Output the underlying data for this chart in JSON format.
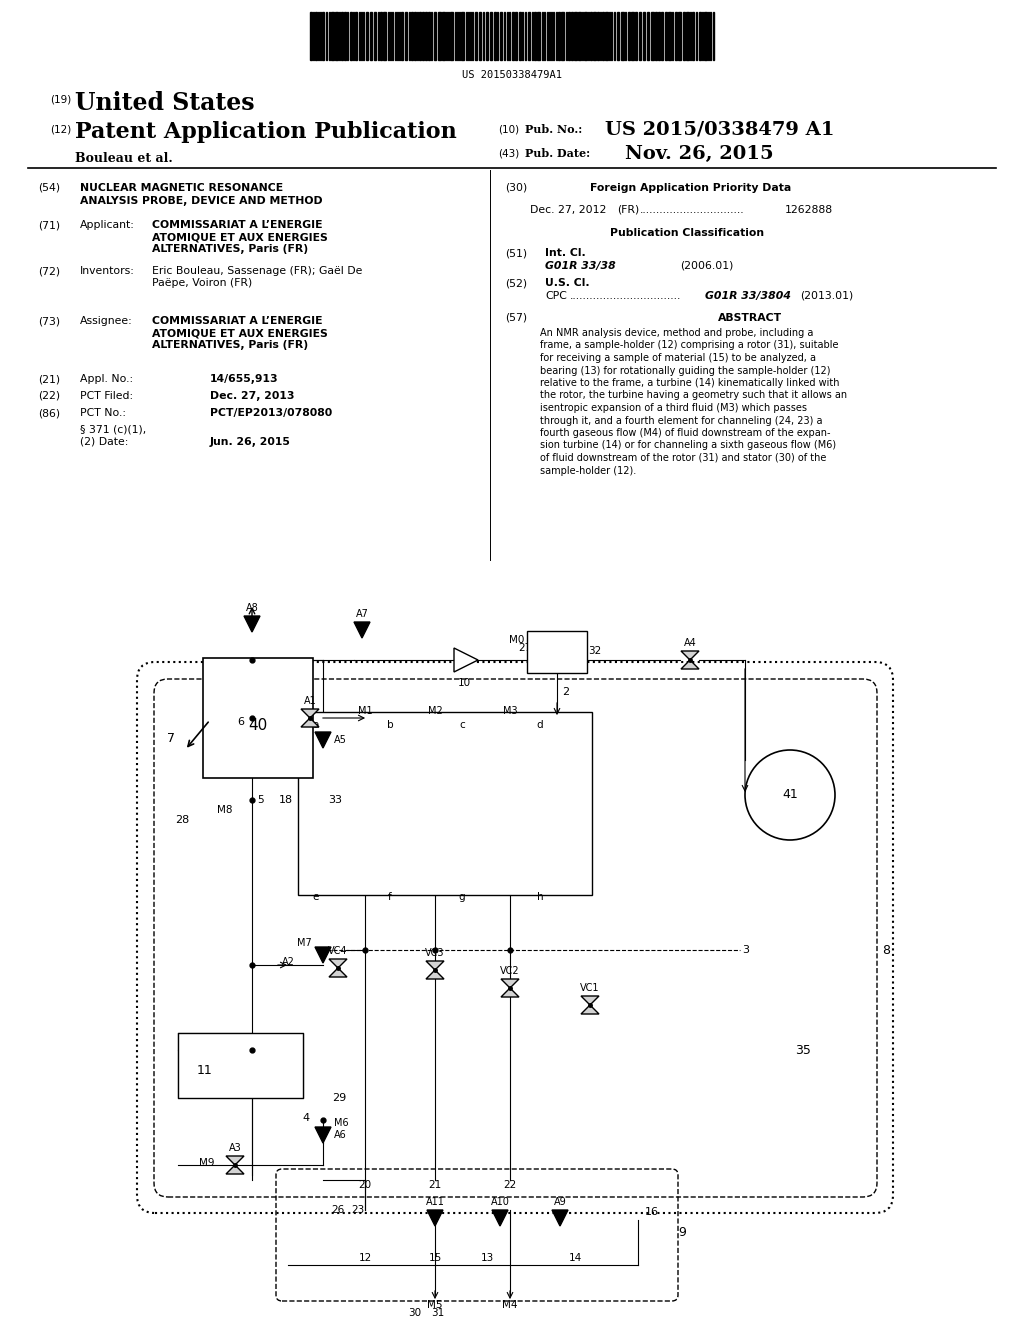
{
  "bg_color": "#ffffff",
  "barcode_text": "US 20150338479A1",
  "country": "United States",
  "inventor_line": "Bouleau et al.",
  "pub_no": "US 2015/0338479 A1",
  "pub_date": "Nov. 26, 2015",
  "title_line1": "NUCLEAR MAGNETIC RESONANCE",
  "title_line2": "ANALYSIS PROBE, DEVICE AND METHOD",
  "applicant_val1": "COMMISSARIAT A L’ENERGIE",
  "applicant_val2": "ATOMIQUE ET AUX ENERGIES",
  "applicant_val3": "ALTERNATIVES, Paris (FR)",
  "inventors_val1": "Eric Bouleau, Sassenage (FR); Gaël De",
  "inventors_val2": "Paëpe, Voiron (FR)",
  "assignee_val1": "COMMISSARIAT A L’ENERGIE",
  "assignee_val2": "ATOMIQUE ET AUX ENERGIES",
  "assignee_val3": "ALTERNATIVES, Paris (FR)",
  "appl_no_val": "14/655,913",
  "pct_filed_val": "Dec. 27, 2013",
  "pct_no_val": "PCT/EP2013/078080",
  "sec371_line1": "§ 371 (c)(1),",
  "sec371_line2": "(2) Date:",
  "sec371_date": "Jun. 26, 2015",
  "foreign_header": "Foreign Application Priority Data",
  "foreign_date": "Dec. 27, 2012",
  "foreign_country": "(FR)",
  "foreign_dots": "...............................",
  "foreign_no": "1262888",
  "pub_class_header": "Publication Classification",
  "intcl_val": "G01R 33/38",
  "intcl_year": "(2006.01)",
  "cpc_dots": ".................................",
  "cpc_val": "G01R 33/3804",
  "cpc_year": "(2013.01)",
  "abstract_header": "ABSTRACT",
  "abstract_lines": [
    "An NMR analysis device, method and probe, including a",
    "frame, a sample-holder (12) comprising a rotor (31), suitable",
    "for receiving a sample of material (15) to be analyzed, a",
    "bearing (13) for rotationally guiding the sample-holder (12)",
    "relative to the frame, a turbine (14) kinematically linked with",
    "the rotor, the turbine having a geometry such that it allows an",
    "isentropic expansion of a third fluid (M3) which passes",
    "through it, and a fourth element for channeling (24, 23) a",
    "fourth gaseous flow (M4) of fluid downstream of the expan-",
    "sion turbine (14) or for channeling a sixth gaseous flow (M6)",
    "of fluid downstream of the rotor (31) and stator (30) of the",
    "sample-holder (12)."
  ]
}
